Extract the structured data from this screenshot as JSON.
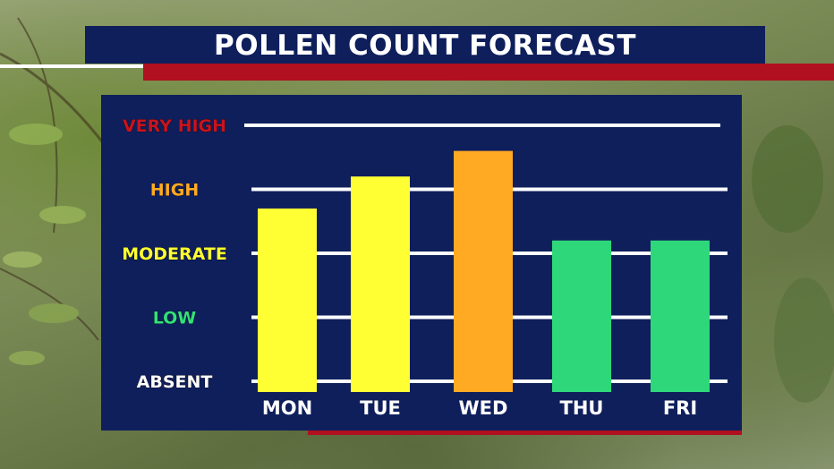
{
  "title": "POLLEN COUNT FORECAST",
  "colors": {
    "panel": "#0f1f5c",
    "title_bar": "#0f1f5c",
    "accent_red": "#b01020",
    "gridline": "#ffffff"
  },
  "chart_data": {
    "type": "bar",
    "title": "POLLEN COUNT FORECAST",
    "xlabel": "",
    "ylabel": "",
    "categories": [
      "MON",
      "TUE",
      "WED",
      "THU",
      "FRI"
    ],
    "values": [
      2.7,
      3.2,
      3.6,
      2.2,
      2.2
    ],
    "bar_colors": [
      "#ffff33",
      "#ffff33",
      "#ffaa22",
      "#2ed87a",
      "#2ed87a"
    ],
    "ylim": [
      0,
      4
    ],
    "y_levels": [
      {
        "value": 0,
        "label": "ABSENT",
        "color": "#ffffff"
      },
      {
        "value": 1,
        "label": "LOW",
        "color": "#33e07a"
      },
      {
        "value": 2,
        "label": "MODERATE",
        "color": "#ffff33"
      },
      {
        "value": 3,
        "label": "HIGH",
        "color": "#ffaa22"
      },
      {
        "value": 4,
        "label": "VERY HIGH",
        "color": "#c8141e"
      }
    ],
    "grid": true,
    "legend": "none"
  }
}
